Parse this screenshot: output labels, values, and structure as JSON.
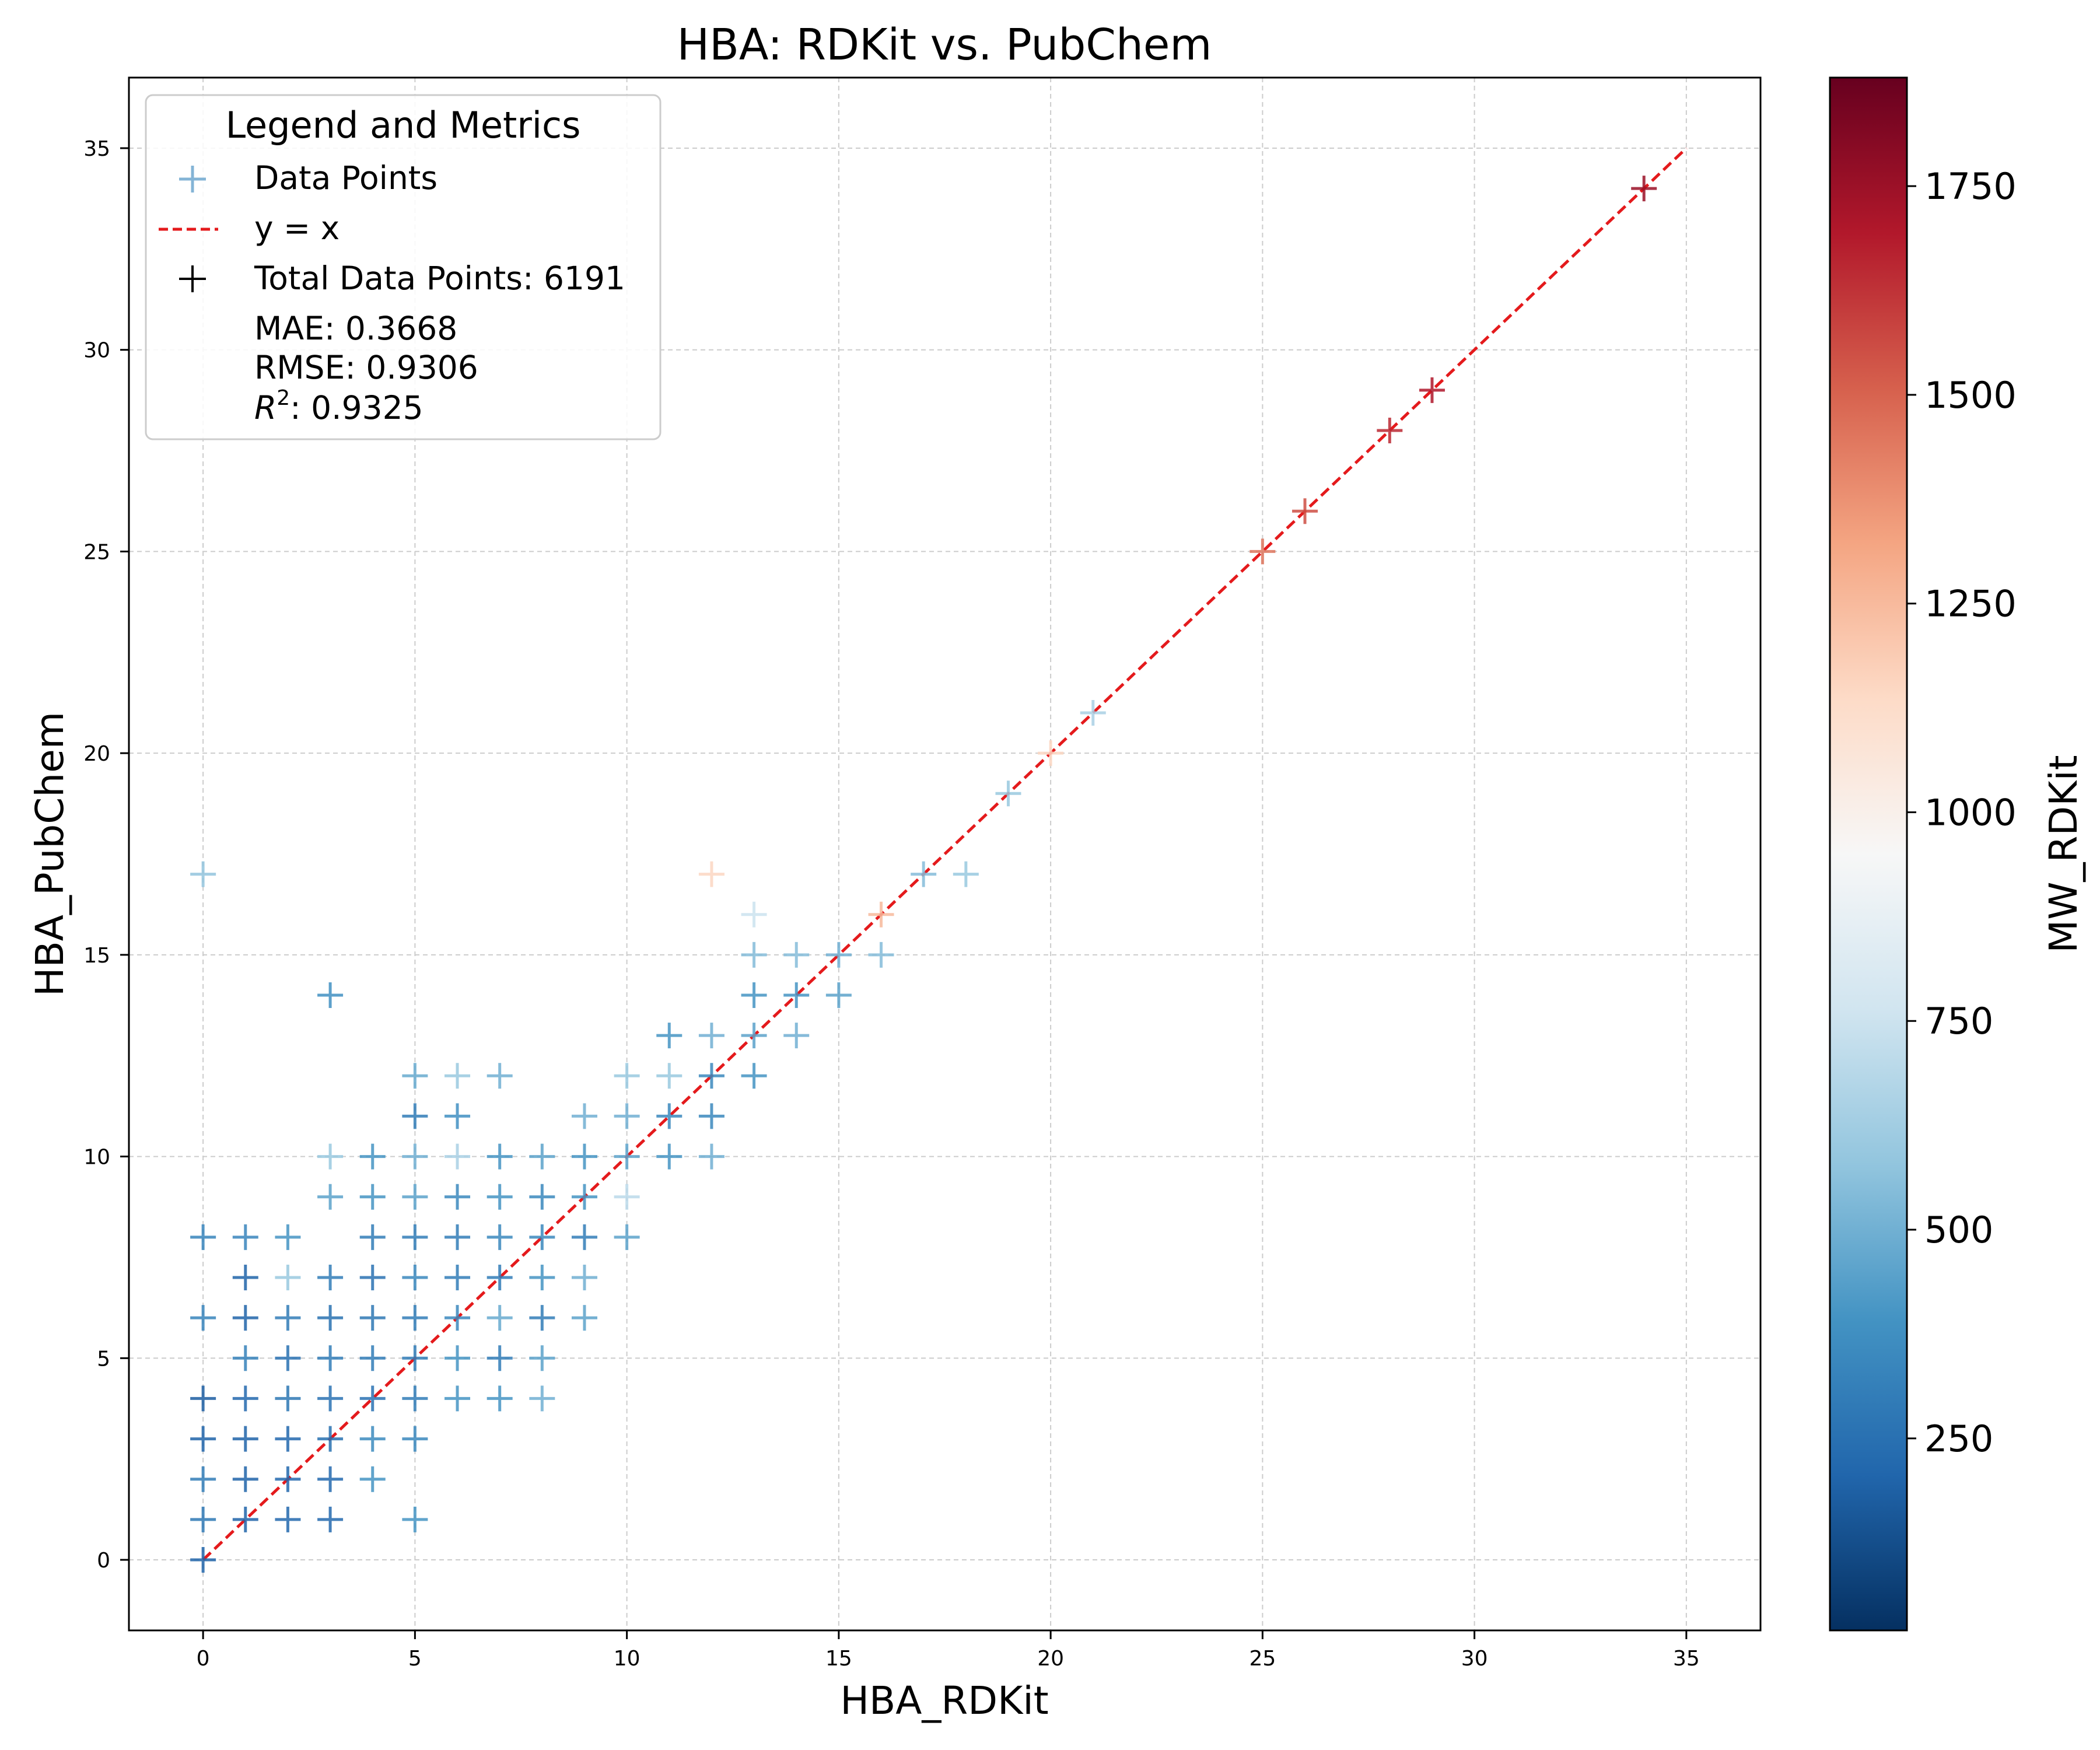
{
  "chart_data": {
    "type": "scatter",
    "title": "HBA: RDKit vs. PubChem",
    "xlabel": "HBA_RDKit",
    "ylabel": "HBA_PubChem",
    "xlim": [
      -1.75,
      36.75
    ],
    "ylim": [
      -1.75,
      36.75
    ],
    "x_ticks": [
      "0",
      "5",
      "10",
      "15",
      "20",
      "25",
      "30",
      "35"
    ],
    "y_ticks": [
      "0",
      "5",
      "10",
      "15",
      "20",
      "25",
      "30",
      "35"
    ],
    "grid": true,
    "marker": "+",
    "legend": {
      "title": "Legend and Metrics",
      "placement": "upper-left",
      "entries": [
        "Data Points",
        "y = x",
        "Total Data Points: 6191"
      ],
      "metrics": [
        "MAE: 0.3668",
        "RMSE: 0.9306"
      ],
      "r2_symbol": "R",
      "r2_exp": "2",
      "r2_value": ": 0.9325"
    },
    "reference_line": {
      "name": "y = x",
      "from": [
        0,
        0
      ],
      "to": [
        35,
        35
      ],
      "color": "#e41a1c",
      "style": "dashed"
    },
    "colorbar": {
      "label": "MW_RDKit",
      "range": [
        20,
        1880
      ],
      "ticks": [
        "250",
        "500",
        "750",
        "1000",
        "1250",
        "1500",
        "1750"
      ],
      "colormap": "RdBu_r",
      "stops": [
        "#053061",
        "#2166ac",
        "#4393c3",
        "#92c5de",
        "#d1e5f0",
        "#f7f7f7",
        "#fddbc7",
        "#f4a582",
        "#d6604d",
        "#b2182b",
        "#67001f"
      ]
    },
    "points": [
      {
        "x": 0,
        "y": 0,
        "mw": 200
      },
      {
        "x": 0,
        "y": 1,
        "mw": 280
      },
      {
        "x": 0,
        "y": 2,
        "mw": 300
      },
      {
        "x": 0,
        "y": 3,
        "mw": 200
      },
      {
        "x": 0,
        "y": 4,
        "mw": 180
      },
      {
        "x": 0,
        "y": 6,
        "mw": 330
      },
      {
        "x": 0,
        "y": 8,
        "mw": 330
      },
      {
        "x": 0,
        "y": 17,
        "mw": 580
      },
      {
        "x": 1,
        "y": 1,
        "mw": 200
      },
      {
        "x": 1,
        "y": 2,
        "mw": 200
      },
      {
        "x": 1,
        "y": 3,
        "mw": 200
      },
      {
        "x": 1,
        "y": 4,
        "mw": 220
      },
      {
        "x": 1,
        "y": 5,
        "mw": 320
      },
      {
        "x": 1,
        "y": 6,
        "mw": 200
      },
      {
        "x": 1,
        "y": 7,
        "mw": 200
      },
      {
        "x": 1,
        "y": 8,
        "mw": 340
      },
      {
        "x": 2,
        "y": 1,
        "mw": 220
      },
      {
        "x": 2,
        "y": 2,
        "mw": 220
      },
      {
        "x": 2,
        "y": 3,
        "mw": 220
      },
      {
        "x": 2,
        "y": 4,
        "mw": 280
      },
      {
        "x": 2,
        "y": 5,
        "mw": 260
      },
      {
        "x": 2,
        "y": 6,
        "mw": 300
      },
      {
        "x": 2,
        "y": 7,
        "mw": 600
      },
      {
        "x": 2,
        "y": 8,
        "mw": 400
      },
      {
        "x": 3,
        "y": 1,
        "mw": 220
      },
      {
        "x": 3,
        "y": 2,
        "mw": 220
      },
      {
        "x": 3,
        "y": 3,
        "mw": 250
      },
      {
        "x": 3,
        "y": 4,
        "mw": 260
      },
      {
        "x": 3,
        "y": 5,
        "mw": 300
      },
      {
        "x": 3,
        "y": 6,
        "mw": 250
      },
      {
        "x": 3,
        "y": 7,
        "mw": 300
      },
      {
        "x": 3,
        "y": 9,
        "mw": 450
      },
      {
        "x": 3,
        "y": 10,
        "mw": 600
      },
      {
        "x": 3,
        "y": 14,
        "mw": 380
      },
      {
        "x": 4,
        "y": 2,
        "mw": 400
      },
      {
        "x": 4,
        "y": 3,
        "mw": 360
      },
      {
        "x": 4,
        "y": 4,
        "mw": 260
      },
      {
        "x": 4,
        "y": 5,
        "mw": 300
      },
      {
        "x": 4,
        "y": 6,
        "mw": 280
      },
      {
        "x": 4,
        "y": 7,
        "mw": 260
      },
      {
        "x": 4,
        "y": 8,
        "mw": 300
      },
      {
        "x": 4,
        "y": 9,
        "mw": 400
      },
      {
        "x": 4,
        "y": 10,
        "mw": 400
      },
      {
        "x": 5,
        "y": 1,
        "mw": 400
      },
      {
        "x": 5,
        "y": 3,
        "mw": 350
      },
      {
        "x": 5,
        "y": 4,
        "mw": 300
      },
      {
        "x": 5,
        "y": 5,
        "mw": 300
      },
      {
        "x": 5,
        "y": 6,
        "mw": 300
      },
      {
        "x": 5,
        "y": 7,
        "mw": 350
      },
      {
        "x": 5,
        "y": 8,
        "mw": 300
      },
      {
        "x": 5,
        "y": 9,
        "mw": 450
      },
      {
        "x": 5,
        "y": 10,
        "mw": 500
      },
      {
        "x": 5,
        "y": 11,
        "mw": 300
      },
      {
        "x": 5,
        "y": 12,
        "mw": 480
      },
      {
        "x": 6,
        "y": 4,
        "mw": 400
      },
      {
        "x": 6,
        "y": 5,
        "mw": 400
      },
      {
        "x": 6,
        "y": 6,
        "mw": 350
      },
      {
        "x": 6,
        "y": 7,
        "mw": 300
      },
      {
        "x": 6,
        "y": 8,
        "mw": 300
      },
      {
        "x": 6,
        "y": 9,
        "mw": 350
      },
      {
        "x": 6,
        "y": 10,
        "mw": 650
      },
      {
        "x": 6,
        "y": 11,
        "mw": 380
      },
      {
        "x": 6,
        "y": 12,
        "mw": 600
      },
      {
        "x": 7,
        "y": 4,
        "mw": 400
      },
      {
        "x": 7,
        "y": 5,
        "mw": 300
      },
      {
        "x": 7,
        "y": 6,
        "mw": 480
      },
      {
        "x": 7,
        "y": 7,
        "mw": 300
      },
      {
        "x": 7,
        "y": 8,
        "mw": 350
      },
      {
        "x": 7,
        "y": 9,
        "mw": 400
      },
      {
        "x": 7,
        "y": 10,
        "mw": 400
      },
      {
        "x": 7,
        "y": 12,
        "mw": 500
      },
      {
        "x": 8,
        "y": 4,
        "mw": 500
      },
      {
        "x": 8,
        "y": 5,
        "mw": 450
      },
      {
        "x": 8,
        "y": 6,
        "mw": 300
      },
      {
        "x": 8,
        "y": 7,
        "mw": 400
      },
      {
        "x": 8,
        "y": 8,
        "mw": 350
      },
      {
        "x": 8,
        "y": 9,
        "mw": 350
      },
      {
        "x": 8,
        "y": 10,
        "mw": 450
      },
      {
        "x": 9,
        "y": 6,
        "mw": 450
      },
      {
        "x": 9,
        "y": 7,
        "mw": 500
      },
      {
        "x": 9,
        "y": 8,
        "mw": 300
      },
      {
        "x": 9,
        "y": 9,
        "mw": 400
      },
      {
        "x": 9,
        "y": 10,
        "mw": 400
      },
      {
        "x": 9,
        "y": 11,
        "mw": 500
      },
      {
        "x": 10,
        "y": 8,
        "mw": 450
      },
      {
        "x": 10,
        "y": 9,
        "mw": 700
      },
      {
        "x": 10,
        "y": 10,
        "mw": 450
      },
      {
        "x": 10,
        "y": 11,
        "mw": 500
      },
      {
        "x": 10,
        "y": 12,
        "mw": 600
      },
      {
        "x": 11,
        "y": 10,
        "mw": 400
      },
      {
        "x": 11,
        "y": 11,
        "mw": 350
      },
      {
        "x": 11,
        "y": 12,
        "mw": 600
      },
      {
        "x": 11,
        "y": 13,
        "mw": 400
      },
      {
        "x": 12,
        "y": 10,
        "mw": 500
      },
      {
        "x": 12,
        "y": 11,
        "mw": 350
      },
      {
        "x": 12,
        "y": 12,
        "mw": 350
      },
      {
        "x": 12,
        "y": 13,
        "mw": 500
      },
      {
        "x": 12,
        "y": 17,
        "mw": 1150
      },
      {
        "x": 13,
        "y": 12,
        "mw": 400
      },
      {
        "x": 13,
        "y": 13,
        "mw": 450
      },
      {
        "x": 13,
        "y": 14,
        "mw": 400
      },
      {
        "x": 13,
        "y": 15,
        "mw": 550
      },
      {
        "x": 13,
        "y": 16,
        "mw": 750
      },
      {
        "x": 14,
        "y": 13,
        "mw": 500
      },
      {
        "x": 14,
        "y": 14,
        "mw": 400
      },
      {
        "x": 14,
        "y": 15,
        "mw": 550
      },
      {
        "x": 15,
        "y": 14,
        "mw": 450
      },
      {
        "x": 15,
        "y": 15,
        "mw": 500
      },
      {
        "x": 16,
        "y": 15,
        "mw": 550
      },
      {
        "x": 16,
        "y": 16,
        "mw": 1250
      },
      {
        "x": 17,
        "y": 17,
        "mw": 550
      },
      {
        "x": 18,
        "y": 17,
        "mw": 600
      },
      {
        "x": 19,
        "y": 19,
        "mw": 600
      },
      {
        "x": 20,
        "y": 20,
        "mw": 1150
      },
      {
        "x": 21,
        "y": 21,
        "mw": 650
      },
      {
        "x": 25,
        "y": 25,
        "mw": 1450
      },
      {
        "x": 26,
        "y": 26,
        "mw": 1550
      },
      {
        "x": 28,
        "y": 28,
        "mw": 1650
      },
      {
        "x": 29,
        "y": 29,
        "mw": 1700
      },
      {
        "x": 34,
        "y": 34,
        "mw": 1750
      }
    ]
  }
}
